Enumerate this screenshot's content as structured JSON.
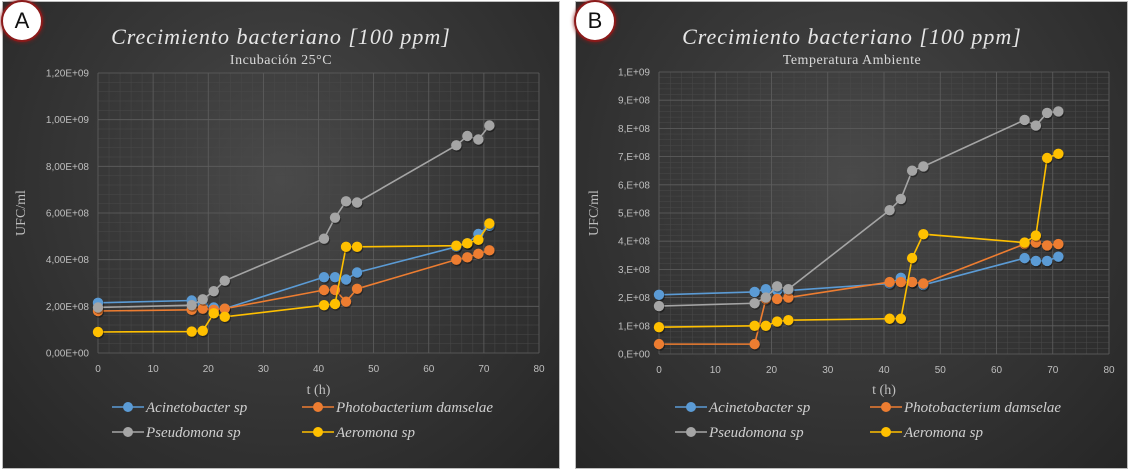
{
  "chart_data": [
    {
      "id": "A",
      "type": "line",
      "badge": "A",
      "title": "Crecimiento bacteriano [100 ppm]",
      "subtitle": "Incubación 25°C",
      "xlabel": "t (h)",
      "ylabel": "UFC/ml",
      "xlim": [
        0,
        80
      ],
      "ylim": [
        0,
        1200000000
      ],
      "xticks": [
        0,
        10,
        20,
        30,
        40,
        50,
        60,
        70,
        80
      ],
      "xtick_labels": [
        "0",
        "10",
        "20",
        "30",
        "40",
        "50",
        "60",
        "70",
        "80"
      ],
      "yticks": [
        0,
        200000000,
        400000000,
        600000000,
        800000000,
        1000000000,
        1200000000
      ],
      "ytick_labels": [
        "0,00E+00",
        "2,00E+08",
        "4,00E+08",
        "6,00E+08",
        "8,00E+08",
        "1,00E+09",
        "1,20E+09"
      ],
      "grid": true,
      "legend_position": "bottom",
      "series": [
        {
          "name": "Acinetobacter sp",
          "color": "#5b9bd5",
          "x": [
            0,
            17,
            19,
            21,
            23,
            41,
            43,
            45,
            47,
            65,
            67,
            69,
            71
          ],
          "y": [
            215000000,
            225000000,
            205000000,
            195000000,
            190000000,
            325000000,
            325000000,
            315000000,
            345000000,
            455000000,
            470000000,
            510000000,
            545000000
          ]
        },
        {
          "name": "Photobacterium damselae",
          "color": "#ed7d31",
          "x": [
            0,
            17,
            19,
            21,
            23,
            41,
            43,
            45,
            47,
            65,
            67,
            69,
            71
          ],
          "y": [
            180000000,
            185000000,
            190000000,
            185000000,
            190000000,
            270000000,
            270000000,
            220000000,
            275000000,
            400000000,
            410000000,
            425000000,
            440000000
          ]
        },
        {
          "name": "Pseudomona sp",
          "color": "#a5a5a5",
          "x": [
            0,
            17,
            19,
            21,
            23,
            41,
            43,
            45,
            47,
            65,
            67,
            69,
            71
          ],
          "y": [
            195000000,
            205000000,
            230000000,
            265000000,
            310000000,
            490000000,
            580000000,
            650000000,
            645000000,
            890000000,
            930000000,
            915000000,
            975000000
          ]
        },
        {
          "name": "Aeromona sp",
          "color": "#ffc000",
          "x": [
            0,
            17,
            19,
            21,
            23,
            41,
            43,
            45,
            47,
            65,
            67,
            69,
            71
          ],
          "y": [
            90000000,
            92000000,
            95000000,
            170000000,
            155000000,
            205000000,
            210000000,
            455000000,
            455000000,
            460000000,
            470000000,
            485000000,
            555000000
          ]
        }
      ]
    },
    {
      "id": "B",
      "type": "line",
      "badge": "B",
      "title": "Crecimiento bacteriano [100 ppm]",
      "subtitle": "Temperatura Ambiente",
      "xlabel": "t (h)",
      "ylabel": "UFC/ml",
      "xlim": [
        0,
        80
      ],
      "ylim": [
        0,
        1000000000
      ],
      "xticks": [
        0,
        10,
        20,
        30,
        40,
        50,
        60,
        70,
        80
      ],
      "xtick_labels": [
        "0",
        "10",
        "20",
        "30",
        "40",
        "50",
        "60",
        "70",
        "80"
      ],
      "yticks": [
        0,
        100000000,
        200000000,
        300000000,
        400000000,
        500000000,
        600000000,
        700000000,
        800000000,
        900000000,
        1000000000
      ],
      "ytick_labels": [
        "0,E+00",
        "1,E+08",
        "2,E+08",
        "3,E+08",
        "4,E+08",
        "5,E+08",
        "6,E+08",
        "7,E+08",
        "8,E+08",
        "9,E+08",
        "1,E+09"
      ],
      "grid": true,
      "legend_position": "bottom",
      "series": [
        {
          "name": "Acinetobacter sp",
          "color": "#5b9bd5",
          "x": [
            0,
            17,
            19,
            21,
            23,
            41,
            43,
            45,
            47,
            65,
            67,
            69,
            71
          ],
          "y": [
            210000000,
            220000000,
            230000000,
            225000000,
            225000000,
            250000000,
            270000000,
            255000000,
            245000000,
            340000000,
            330000000,
            330000000,
            345000000
          ]
        },
        {
          "name": "Photobacterium damselae",
          "color": "#ed7d31",
          "x": [
            0,
            17,
            19,
            21,
            23,
            41,
            43,
            45,
            47,
            65,
            67,
            69,
            71
          ],
          "y": [
            35000000,
            35000000,
            195000000,
            195000000,
            200000000,
            255000000,
            255000000,
            255000000,
            250000000,
            390000000,
            395000000,
            385000000,
            390000000
          ]
        },
        {
          "name": "Pseudomona sp",
          "color": "#a5a5a5",
          "x": [
            0,
            17,
            19,
            21,
            23,
            41,
            43,
            45,
            47,
            65,
            67,
            69,
            71
          ],
          "y": [
            170000000,
            180000000,
            200000000,
            240000000,
            230000000,
            510000000,
            550000000,
            650000000,
            665000000,
            830000000,
            810000000,
            855000000,
            860000000
          ]
        },
        {
          "name": "Aeromona sp",
          "color": "#ffc000",
          "x": [
            0,
            17,
            19,
            21,
            23,
            41,
            43,
            45,
            47,
            65,
            67,
            69,
            71
          ],
          "y": [
            95000000,
            100000000,
            100000000,
            115000000,
            120000000,
            125000000,
            125000000,
            340000000,
            425000000,
            395000000,
            420000000,
            695000000,
            710000000
          ]
        }
      ]
    }
  ]
}
